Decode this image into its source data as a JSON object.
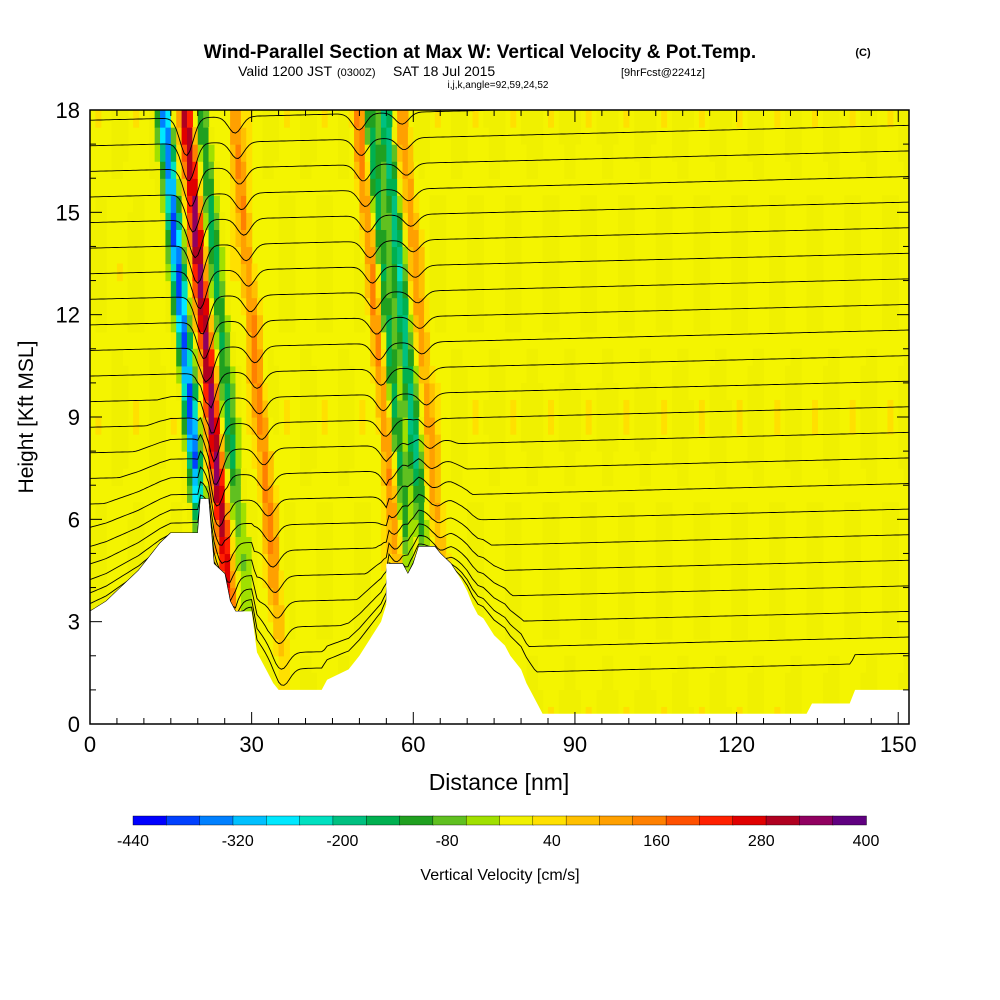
{
  "chart_data": {
    "type": "heatmap",
    "title_main": "Wind-Parallel Section at Max W: Vertical Velocity & Pot.Temp.",
    "title_units": "(C)",
    "subtitle_valid": "Valid 1200 JST",
    "subtitle_utc": "(0300Z)",
    "subtitle_date": "SAT 18 Jul 2015",
    "subtitle_fcst": "[9hrFcst@2241z]",
    "subtitle_params": "i,j,k,angle=92,59,24,52",
    "xlabel": "Distance [nm]",
    "ylabel": "Height [Kft MSL]",
    "xlim": [
      0,
      152
    ],
    "ylim": [
      0,
      18
    ],
    "x_ticks": [
      "0",
      "30",
      "60",
      "90",
      "120",
      "150"
    ],
    "x_tick_values": [
      0,
      30,
      60,
      90,
      120,
      150
    ],
    "y_ticks": [
      "0",
      "3",
      "6",
      "9",
      "12",
      "15",
      "18"
    ],
    "y_tick_values": [
      0,
      3,
      6,
      9,
      12,
      15,
      18
    ],
    "colorbar": {
      "label": "Vertical Velocity [cm/s]",
      "tick_labels": [
        "-440",
        "-320",
        "-200",
        "-80",
        "40",
        "160",
        "280",
        "400"
      ],
      "tick_values": [
        -440,
        -320,
        -200,
        -80,
        40,
        160,
        280,
        400
      ],
      "colors": [
        "#0000ff",
        "#0040ff",
        "#0080ff",
        "#00c0ff",
        "#00e8ff",
        "#00e0c0",
        "#00c080",
        "#00b050",
        "#20a020",
        "#60c020",
        "#a0e000",
        "#f0f000",
        "#ffe000",
        "#ffc000",
        "#ffa000",
        "#ff8000",
        "#ff5000",
        "#ff2000",
        "#e00000",
        "#b00020",
        "#900060",
        "#600080"
      ]
    },
    "background_w_color": "#f4f400",
    "updraft_bands": [
      {
        "center_x": 26,
        "strength": 320
      },
      {
        "center_x": 35,
        "strength": 140
      },
      {
        "center_x": 58,
        "strength": 140
      },
      {
        "center_x": 66,
        "strength": 100
      }
    ],
    "downdraft_bands": [
      {
        "center_x": 22,
        "strength": -380
      },
      {
        "center_x": 29,
        "strength": -150
      },
      {
        "center_x": 60,
        "strength": -180
      },
      {
        "center_x": 63,
        "strength": -200
      }
    ],
    "terrain": [
      [
        0,
        3.3
      ],
      [
        3,
        3.6
      ],
      [
        5,
        3.9
      ],
      [
        7,
        4.2
      ],
      [
        9,
        4.5
      ],
      [
        11,
        4.9
      ],
      [
        13,
        5.3
      ],
      [
        15,
        5.6
      ],
      [
        20,
        5.6
      ],
      [
        20.5,
        6.6
      ],
      [
        22,
        6.6
      ],
      [
        23,
        4.7
      ],
      [
        25,
        4.4
      ],
      [
        26,
        3.6
      ],
      [
        27,
        3.3
      ],
      [
        30,
        3.3
      ],
      [
        31,
        2.1
      ],
      [
        32,
        1.8
      ],
      [
        33,
        1.5
      ],
      [
        34,
        1.2
      ],
      [
        35,
        1.0
      ],
      [
        43,
        1.0
      ],
      [
        44,
        1.3
      ],
      [
        48,
        1.6
      ],
      [
        50,
        2.0
      ],
      [
        52,
        2.5
      ],
      [
        54,
        3.0
      ],
      [
        55,
        3.5
      ],
      [
        55,
        4.7
      ],
      [
        58,
        4.7
      ],
      [
        59,
        4.4
      ],
      [
        60,
        4.7
      ],
      [
        61,
        5.2
      ],
      [
        64,
        5.2
      ],
      [
        65,
        5.0
      ],
      [
        67,
        4.7
      ],
      [
        69,
        4.2
      ],
      [
        70,
        3.9
      ],
      [
        71,
        3.5
      ],
      [
        72,
        3.2
      ],
      [
        73,
        3.1
      ],
      [
        75,
        2.6
      ],
      [
        77,
        2.3
      ],
      [
        78,
        2.0
      ],
      [
        80,
        1.6
      ],
      [
        81,
        1.2
      ],
      [
        82,
        0.9
      ],
      [
        83,
        0.6
      ],
      [
        84,
        0.3
      ],
      [
        133,
        0.3
      ],
      [
        134,
        0.6
      ],
      [
        141,
        0.6
      ],
      [
        142,
        1.0
      ],
      [
        152,
        1.0
      ]
    ],
    "theta_contours": {
      "count": 23,
      "surface_base": 1.2,
      "spacing": 0.75
    }
  }
}
